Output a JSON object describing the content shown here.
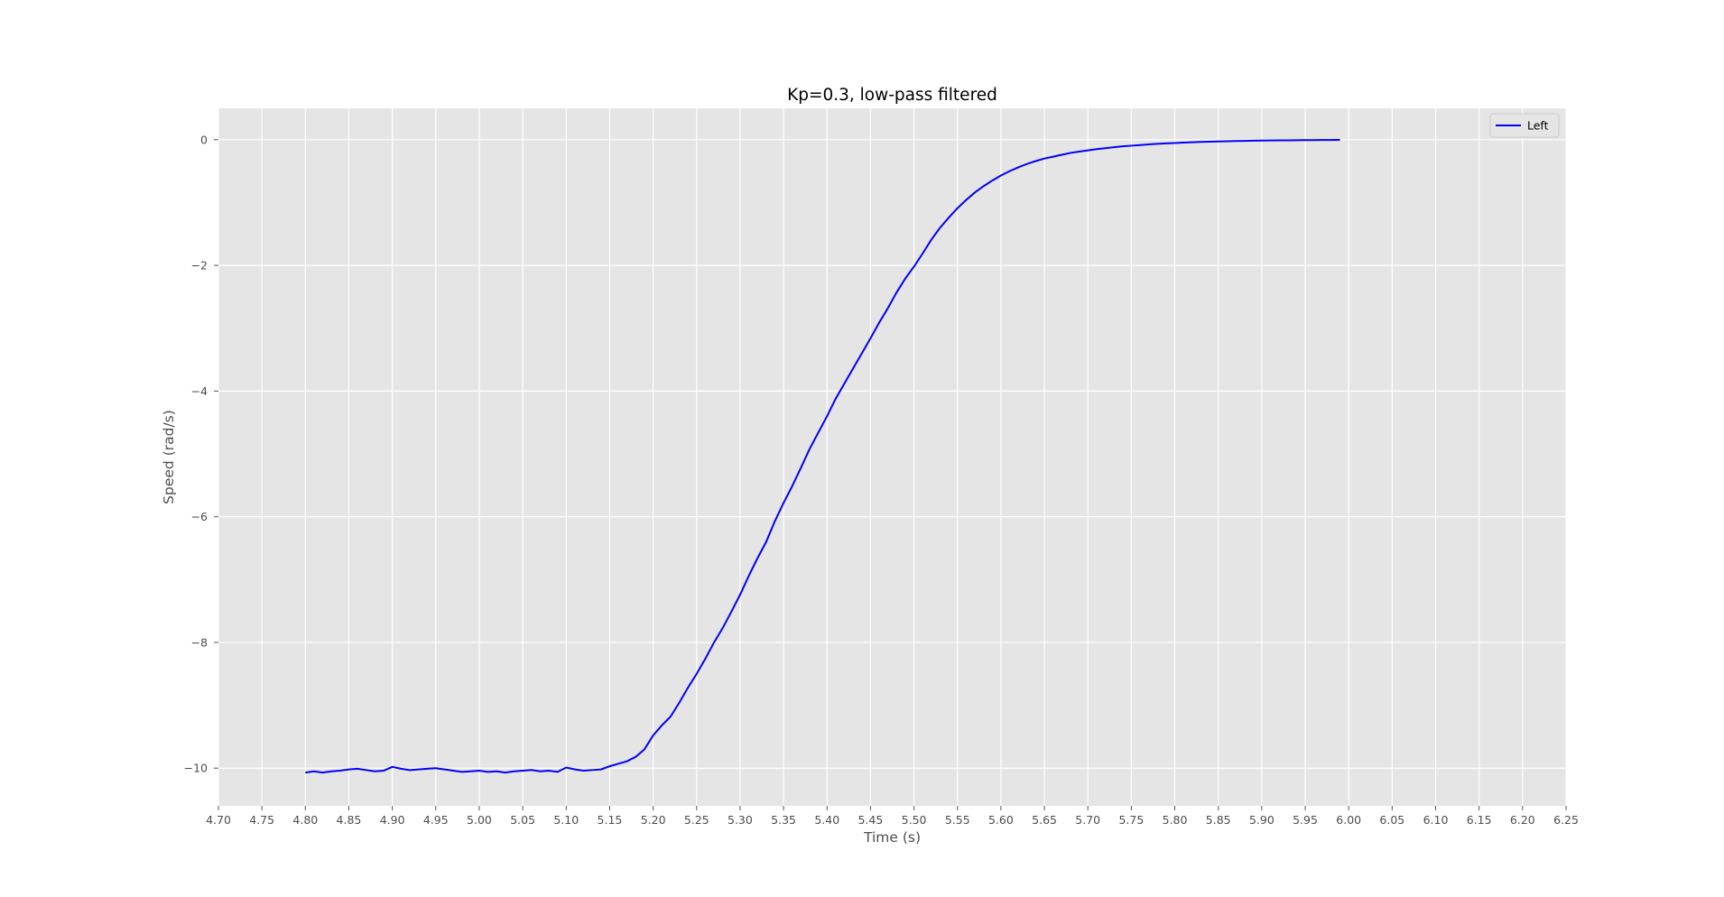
{
  "chart_data": {
    "type": "line",
    "title": "Kp=0.3, low-pass filtered",
    "xlabel": "Time (s)",
    "ylabel": "Speed (rad/s)",
    "xlim": [
      4.7,
      6.25
    ],
    "ylim": [
      -10.6,
      0.5
    ],
    "x_ticks": [
      "4.70",
      "4.75",
      "4.80",
      "4.85",
      "4.90",
      "4.95",
      "5.00",
      "5.05",
      "5.10",
      "5.15",
      "5.20",
      "5.25",
      "5.30",
      "5.35",
      "5.40",
      "5.45",
      "5.50",
      "5.55",
      "5.60",
      "5.65",
      "5.70",
      "5.75",
      "5.80",
      "5.85",
      "5.90",
      "5.95",
      "6.00",
      "6.05",
      "6.10",
      "6.15",
      "6.20",
      "6.25"
    ],
    "y_ticks": [
      {
        "value": 0,
        "label": "0"
      },
      {
        "value": -2,
        "label": "−2"
      },
      {
        "value": -4,
        "label": "−4"
      },
      {
        "value": -6,
        "label": "−6"
      },
      {
        "value": -8,
        "label": "−8"
      },
      {
        "value": -10,
        "label": "−10"
      }
    ],
    "grid": true,
    "legend_position": "top-right",
    "style": {
      "plot_background": "#e5e5e5",
      "grid_color": "#ffffff",
      "series_color": "#0000ff"
    },
    "series": [
      {
        "name": "Left",
        "color": "#0000ff",
        "x": [
          4.8,
          4.81,
          4.82,
          4.83,
          4.84,
          4.85,
          4.86,
          4.87,
          4.88,
          4.89,
          4.9,
          4.91,
          4.92,
          4.93,
          4.94,
          4.95,
          4.96,
          4.97,
          4.98,
          4.99,
          5.0,
          5.01,
          5.02,
          5.03,
          5.04,
          5.05,
          5.06,
          5.07,
          5.08,
          5.09,
          5.1,
          5.11,
          5.12,
          5.13,
          5.14,
          5.15,
          5.16,
          5.17,
          5.18,
          5.19,
          5.2,
          5.21,
          5.22,
          5.23,
          5.24,
          5.25,
          5.26,
          5.27,
          5.28,
          5.29,
          5.3,
          5.31,
          5.32,
          5.33,
          5.34,
          5.35,
          5.36,
          5.37,
          5.38,
          5.39,
          5.4,
          5.41,
          5.42,
          5.43,
          5.44,
          5.45,
          5.46,
          5.47,
          5.48,
          5.49,
          5.5,
          5.51,
          5.52,
          5.53,
          5.54,
          5.55,
          5.56,
          5.57,
          5.58,
          5.59,
          5.6,
          5.61,
          5.62,
          5.63,
          5.64,
          5.65,
          5.66,
          5.67,
          5.68,
          5.69,
          5.7,
          5.71,
          5.72,
          5.73,
          5.74,
          5.75,
          5.76,
          5.77,
          5.78,
          5.79,
          5.8,
          5.81,
          5.82,
          5.83,
          5.84,
          5.85,
          5.86,
          5.87,
          5.88,
          5.89,
          5.9,
          5.91,
          5.92,
          5.93,
          5.94,
          5.95,
          5.96,
          5.97,
          5.98,
          5.99
        ],
        "y": [
          -10.07,
          -10.05,
          -10.07,
          -10.05,
          -10.04,
          -10.02,
          -10.01,
          -10.03,
          -10.05,
          -10.04,
          -9.98,
          -10.01,
          -10.03,
          -10.02,
          -10.01,
          -10.0,
          -10.02,
          -10.04,
          -10.06,
          -10.05,
          -10.04,
          -10.06,
          -10.05,
          -10.07,
          -10.05,
          -10.04,
          -10.03,
          -10.05,
          -10.04,
          -10.06,
          -9.99,
          -10.02,
          -10.04,
          -10.03,
          -10.02,
          -9.97,
          -9.93,
          -9.89,
          -9.82,
          -9.7,
          -9.48,
          -9.32,
          -9.18,
          -8.96,
          -8.72,
          -8.5,
          -8.26,
          -8.0,
          -7.77,
          -7.51,
          -7.24,
          -6.94,
          -6.66,
          -6.4,
          -6.07,
          -5.78,
          -5.51,
          -5.22,
          -4.92,
          -4.66,
          -4.4,
          -4.12,
          -3.88,
          -3.64,
          -3.4,
          -3.16,
          -2.91,
          -2.68,
          -2.43,
          -2.21,
          -2.02,
          -1.81,
          -1.59,
          -1.4,
          -1.24,
          -1.09,
          -0.96,
          -0.84,
          -0.74,
          -0.65,
          -0.57,
          -0.5,
          -0.44,
          -0.385,
          -0.34,
          -0.3,
          -0.27,
          -0.24,
          -0.21,
          -0.19,
          -0.17,
          -0.15,
          -0.135,
          -0.12,
          -0.105,
          -0.095,
          -0.085,
          -0.075,
          -0.065,
          -0.058,
          -0.052,
          -0.046,
          -0.04,
          -0.035,
          -0.031,
          -0.027,
          -0.024,
          -0.021,
          -0.018,
          -0.016,
          -0.014,
          -0.012,
          -0.01,
          -0.009,
          -0.008,
          -0.007,
          -0.006,
          -0.005,
          -0.004,
          -0.003
        ]
      }
    ]
  }
}
